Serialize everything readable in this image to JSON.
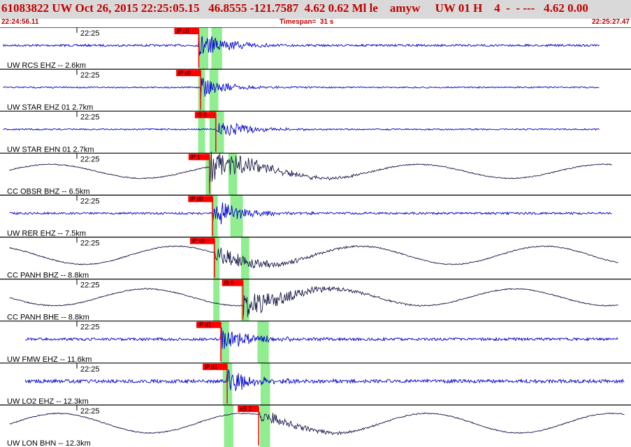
{
  "header": {
    "title": "61083822 UW Oct 26, 2015 22:25:05.15   46.8555 -121.7587  4.62 0.62 Ml le    amyw     UW 01 H    4  -  - ---   4.62 0.00",
    "start_time": "22:24:56.11",
    "timespan": "Timespan=  31 s",
    "end_time": "22:25:27.47"
  },
  "colors": {
    "background": "#ffffff",
    "header_bg": "#d9d9d9",
    "header_text": "#c00000",
    "pick": "#ff0000",
    "window": "#90ee90",
    "trace_blue": "#0000cc",
    "trace_dark": "#1a1a4a"
  },
  "tick_label": "22:25",
  "channels": [
    {
      "label": "UW RCS EHZ -- 2.6km",
      "pick": "iP c0",
      "color": "trace_blue",
      "type": "hf",
      "start": 0.5,
      "end": 95,
      "pick_at": 31.5,
      "amp": 3,
      "quake_amp": 20,
      "windows": [
        [
          31.5,
          33
        ],
        [
          33.5,
          35.2
        ]
      ]
    },
    {
      "label": "UW STAR EHZ 01 2.7km",
      "pick": "iP c0",
      "color": "trace_blue",
      "type": "hf",
      "start": 0.5,
      "end": 95,
      "pick_at": 31.8,
      "amp": 2,
      "quake_amp": 15,
      "windows": [
        [
          31.4,
          32.5
        ],
        [
          33.2,
          34.6
        ]
      ]
    },
    {
      "label": "UW STAR EHN 01 2.7km",
      "pick": "iS 0",
      "color": "trace_blue",
      "type": "hf",
      "start": 0.5,
      "end": 95,
      "pick_at": 34.2,
      "amp": 2,
      "quake_amp": 16,
      "windows": [
        [
          31.4,
          32.5
        ],
        [
          33.2,
          35.5
        ]
      ]
    },
    {
      "label": "CC OBSR BHZ -- 6.5km",
      "pick": "iP 1",
      "color": "trace_dark",
      "type": "lf",
      "start": 1.5,
      "end": 97,
      "pick_at": 33.2,
      "amp": 10,
      "quake_amp": 24,
      "windows": [
        [
          32.6,
          33.5
        ],
        [
          36.2,
          37.6
        ]
      ]
    },
    {
      "label": "UW RER EHZ -- 7.5km",
      "pick": "iP d0",
      "color": "trace_blue",
      "type": "hf",
      "start": 1.5,
      "end": 97,
      "pick_at": 33.7,
      "amp": 3,
      "quake_amp": 22,
      "windows": [
        [
          33.5,
          34.5
        ],
        [
          36.5,
          38.5
        ]
      ]
    },
    {
      "label": "CC PANH BHZ -- 8.8km",
      "pick": "iP c0",
      "color": "trace_dark",
      "type": "lf",
      "start": 1.5,
      "end": 98,
      "pick_at": 34.0,
      "amp": 13,
      "quake_amp": 15,
      "windows": [
        [
          33.8,
          34.8
        ],
        [
          38.2,
          39.5
        ]
      ]
    },
    {
      "label": "CC PANH BHE -- 8.8km",
      "pick": "iS 0",
      "color": "trace_dark",
      "type": "lf",
      "start": 1.5,
      "end": 98,
      "pick_at": 38.5,
      "amp": 12,
      "quake_amp": 20,
      "windows": [
        [
          33.8,
          34.8
        ],
        [
          38.2,
          39.5
        ]
      ]
    },
    {
      "label": "UW FMW EHZ -- 11.6km",
      "pick": "iP d1",
      "color": "trace_blue",
      "type": "hf",
      "start": 4,
      "end": 98,
      "pick_at": 35.0,
      "amp": 4,
      "quake_amp": 22,
      "windows": [
        [
          35,
          36.3
        ],
        [
          40.8,
          42.6
        ]
      ]
    },
    {
      "label": "UW LO2 EHZ -- 12.3km",
      "pick": "iP d1",
      "color": "trace_blue",
      "type": "hf",
      "start": 4,
      "end": 99,
      "pick_at": 36.0,
      "amp": 5,
      "quake_amp": 18,
      "windows": [
        [
          35.3,
          36.8
        ],
        [
          41.3,
          42.8
        ]
      ]
    },
    {
      "label": "UW LON BHN -- 12.3km",
      "pick": "eS 2",
      "color": "trace_dark",
      "type": "lf",
      "start": 1.5,
      "end": 99,
      "pick_at": 41.0,
      "amp": 14,
      "quake_amp": 10,
      "windows": [
        [
          35.5,
          37
        ],
        [
          41.2,
          42.8
        ]
      ]
    }
  ]
}
